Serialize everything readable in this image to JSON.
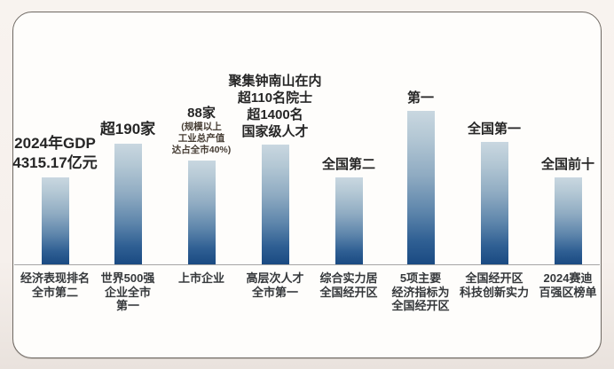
{
  "chart_data": {
    "type": "bar",
    "title": "",
    "xlabel": "",
    "ylabel": "",
    "axis_visible": false,
    "grid": false,
    "legend": "none",
    "categories": [
      "经济表现排名\n全市第二",
      "世界500强\n企业全市\n第一",
      "上市企业",
      "高层次人才\n全市第一",
      "综合实力居\n全国经开区",
      "5项主要\n经济指标为\n全国经开区",
      "全国经开区\n科技创新实力",
      "2024赛迪\n百强区榜单"
    ],
    "data_labels": [
      "2024年GDP\n4315.17亿元",
      "超190家",
      "88家",
      "聚集钟南山在内\n超110名院士\n超1400名\n国家级人才",
      "全国第二",
      "第一",
      "全国第一",
      "全国前十"
    ],
    "data_label_notes": [
      "",
      "",
      "(规模以上\n工业总产值\n达占全市40%)",
      "",
      "",
      "",
      "",
      ""
    ],
    "values": [
      98,
      136,
      117,
      135,
      98,
      173,
      138,
      98
    ],
    "values_encoding": "relative bar heights in pixels (no numeric axis shown)",
    "ylim": [
      0,
      180
    ]
  },
  "colors": {
    "bar_gradient_top": "#c9d7e0",
    "bar_gradient_bottom": "#1a4a82",
    "baseline": "#a5a5a5",
    "card_background": "#fefdfb",
    "card_border": "#6e6862",
    "page_background": "#f6f0ec",
    "label_text": "#262626",
    "note_text": "#453c33"
  }
}
